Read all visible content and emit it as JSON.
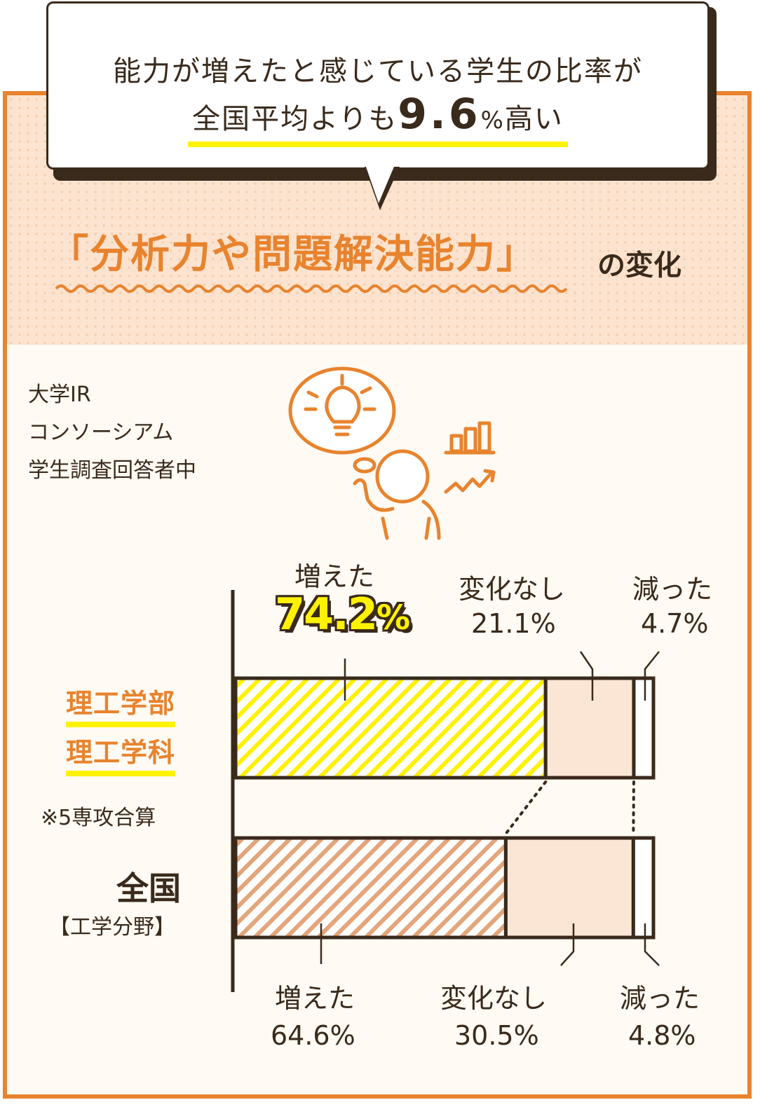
{
  "bubble": {
    "line1": "能力が増えたと感じている学生の比率が",
    "line2_prefix": "全国平均よりも",
    "line2_number": "9.6",
    "line2_unit": "%",
    "line2_suffix": "高い"
  },
  "title": {
    "main": "「分析力や問題解決能力」",
    "suffix": "の変化"
  },
  "source": {
    "line1": "大学IR",
    "line2": "コンソーシアム",
    "line3": "学生調査回答者中"
  },
  "groups": {
    "faculty_line1": "理工学部",
    "faculty_line2": "理工学科",
    "note": "※5専攻合算",
    "national": "全国",
    "national_sub": "【工学分野】"
  },
  "labels": {
    "faculty_increased": "増えた",
    "faculty_increased_value_main": "74.2",
    "faculty_increased_value_unit": "%",
    "faculty_nochange": "変化なし",
    "faculty_nochange_value": "21.1%",
    "faculty_decreased": "減った",
    "faculty_decreased_value": "4.7%",
    "national_increased": "増えた",
    "national_increased_value": "64.6%",
    "national_nochange": "変化なし",
    "national_nochange_value": "30.5%",
    "national_decreased": "減った",
    "national_decreased_value": "4.8%"
  },
  "colors": {
    "accent_orange": "#e8832e",
    "highlight_yellow": "#fff200",
    "dark": "#3a2a1c",
    "peach_fill": "#fbe6d6",
    "hatch_orange": "#e3a57a"
  },
  "chart_data": {
    "type": "bar",
    "orientation": "horizontal-stacked",
    "categories": [
      "理工学部 理工学科",
      "全国【工学分野】"
    ],
    "series": [
      {
        "name": "増えた",
        "values": [
          74.2,
          64.6
        ]
      },
      {
        "name": "変化なし",
        "values": [
          21.1,
          30.5
        ]
      },
      {
        "name": "減った",
        "values": [
          4.7,
          4.8
        ]
      }
    ],
    "xlim": [
      0,
      100
    ]
  }
}
